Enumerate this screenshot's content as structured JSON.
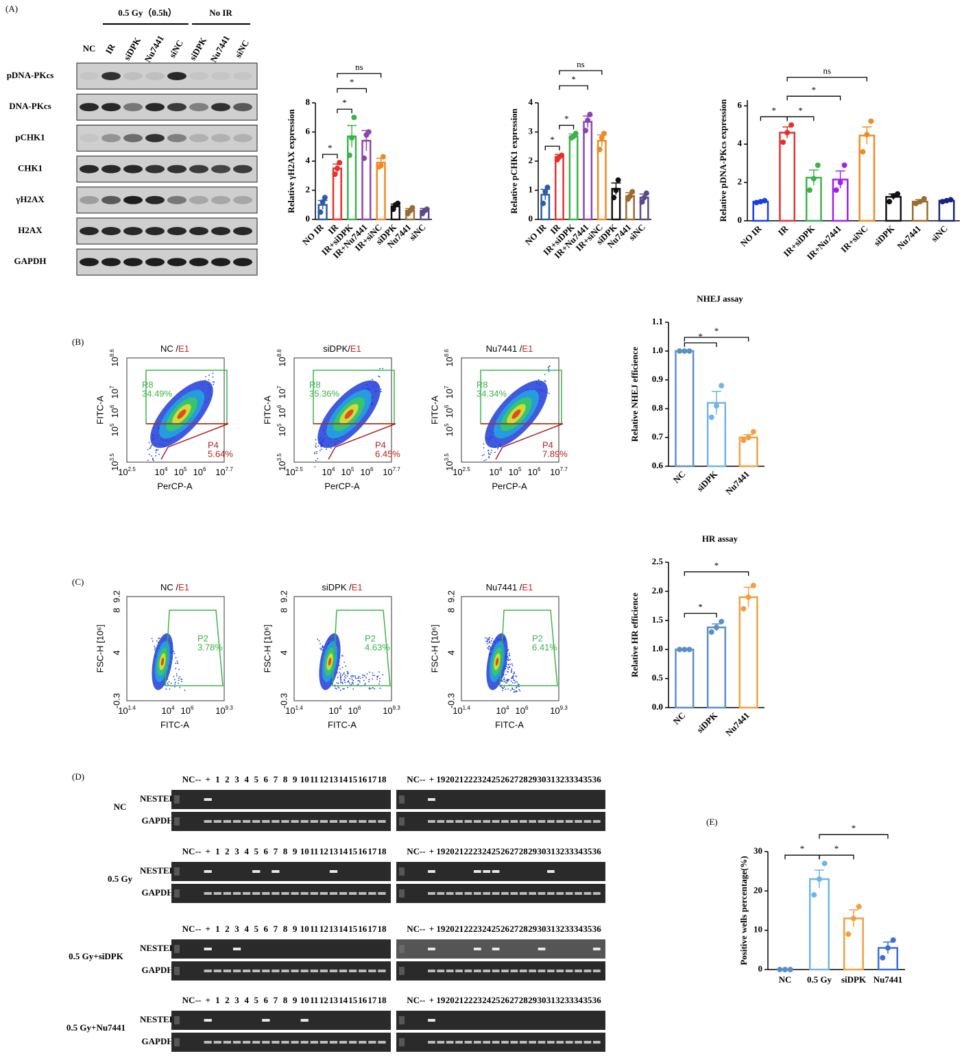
{
  "panel_labels": [
    "(A)",
    "(B)",
    "(C)",
    "(D)",
    "(E)"
  ],
  "blot": {
    "header": [
      "0.5 Gy（0.5h）",
      "No IR"
    ],
    "lanes": [
      "NC",
      "IR",
      "siDPK",
      "Nu7441",
      "siNC",
      "siDPK",
      "Nu7441",
      "siNC"
    ],
    "rows": [
      {
        "name": "pDNA-PKcs",
        "bands": [
          0.05,
          0.8,
          0.08,
          0.08,
          0.85,
          0.05,
          0.05,
          0.05
        ]
      },
      {
        "name": "DNA-PKcs",
        "bands": [
          0.85,
          0.85,
          0.45,
          0.85,
          0.75,
          0.4,
          0.8,
          0.6
        ]
      },
      {
        "name": "pCHK1",
        "bands": [
          0.05,
          0.3,
          0.5,
          0.8,
          0.4,
          0.15,
          0.15,
          0.15
        ]
      },
      {
        "name": "CHK1",
        "bands": [
          0.85,
          0.85,
          0.85,
          0.8,
          0.8,
          0.75,
          0.7,
          0.75
        ]
      },
      {
        "name": "γH2AX",
        "bands": [
          0.25,
          0.6,
          0.9,
          0.85,
          0.45,
          0.2,
          0.2,
          0.2
        ]
      },
      {
        "name": "H2AX",
        "bands": [
          0.85,
          0.85,
          0.85,
          0.85,
          0.85,
          0.85,
          0.85,
          0.85
        ]
      },
      {
        "name": "GAPDH",
        "bands": [
          0.9,
          0.9,
          0.9,
          0.9,
          0.9,
          0.9,
          0.9,
          0.9
        ]
      }
    ]
  },
  "flow_b": {
    "xlabel": "PerCP-A",
    "ylabel": "FITC-A",
    "xticks": [
      {
        "base": "10",
        "exp": "2.5"
      },
      {
        "base": "10",
        "exp": "4"
      },
      {
        "base": "10",
        "exp": "5"
      },
      {
        "base": "10",
        "exp": "6"
      },
      {
        "base": "10",
        "exp": "7.7"
      }
    ],
    "yticks": [
      {
        "base": "10",
        "exp": "3.5"
      },
      {
        "base": "10",
        "exp": "5"
      },
      {
        "base": "10",
        "exp": "6"
      },
      {
        "base": "10",
        "exp": "7"
      },
      {
        "base": "10",
        "exp": "8.6"
      }
    ],
    "plots": [
      {
        "title": "NC /",
        "tag": "E1",
        "gate1": "R8",
        "pct1": "34.49%",
        "gate2": "P4",
        "pct2": "5.64%"
      },
      {
        "title": "siDPK/",
        "tag": "E1",
        "gate1": "R8",
        "pct1": "35.36%",
        "gate2": "P4",
        "pct2": "6.45%"
      },
      {
        "title": "Nu7441 /",
        "tag": "E1",
        "gate1": "R8",
        "pct1": "34.34%",
        "gate2": "P4",
        "pct2": "7.89%"
      }
    ]
  },
  "flow_c": {
    "xlabel": "FITC-A",
    "ylabel": "FSC-H [10⁶]",
    "xticks": [
      {
        "base": "10",
        "exp": "1.4"
      },
      {
        "base": "10",
        "exp": "4"
      },
      {
        "base": "10",
        "exp": "6"
      },
      {
        "base": "10",
        "exp": "9.3"
      }
    ],
    "yticks": [
      "-0.3",
      "4",
      "8",
      "9.2"
    ],
    "plots": [
      {
        "title": "NC /",
        "tag": "E1",
        "gate": "P2",
        "pct": "3.78%"
      },
      {
        "title": "siDPK /",
        "tag": "E1",
        "gate": "P2",
        "pct": "4.63%"
      },
      {
        "title": "Nu7441 /",
        "tag": "E1",
        "gate": "P2",
        "pct": "6.41%"
      }
    ]
  },
  "gel": {
    "rows": [
      "NESTED",
      "GAPDH"
    ],
    "lanes_left": [
      "NC",
      "--",
      "+",
      "1",
      "2",
      "3",
      "4",
      "5",
      "6",
      "7",
      "8",
      "9",
      "10",
      "11",
      "12",
      "13",
      "14",
      "15",
      "16",
      "17",
      "18"
    ],
    "lanes_right": [
      "NC",
      "--",
      "+",
      "19",
      "20",
      "21",
      "22",
      "23",
      "24",
      "25",
      "26",
      "27",
      "28",
      "29",
      "30",
      "31",
      "32",
      "33",
      "34",
      "35",
      "36"
    ],
    "groups": [
      {
        "name": "NC",
        "positive": [
          "+"
        ]
      },
      {
        "name": "0.5 Gy",
        "positive": [
          "+",
          "5",
          "7",
          "13",
          "23",
          "24",
          "25",
          "31"
        ]
      },
      {
        "name": "0.5 Gy+siDPK",
        "positive": [
          "+",
          "3",
          "23",
          "25",
          "30",
          "36"
        ]
      },
      {
        "name": "0.5 Gy+Nu7441",
        "positive": [
          "+",
          "6",
          "10"
        ]
      }
    ]
  },
  "chart_data": [
    {
      "type": "bar",
      "ylabel": "Relative γH2AX expression",
      "categories": [
        "NO IR",
        "IR",
        "IR+siDPK",
        "IR+Nu7441",
        "IR+siNC",
        "siDPK",
        "Nu7441",
        "siNC"
      ],
      "values": [
        1.0,
        3.5,
        5.7,
        5.4,
        3.9,
        0.9,
        0.6,
        0.6
      ],
      "errors": [
        0.3,
        0.3,
        0.75,
        0.7,
        0.3,
        0.15,
        0.15,
        0.15
      ],
      "points": [
        [
          0.5,
          1.2,
          1.5
        ],
        [
          3.1,
          3.5,
          3.9
        ],
        [
          4.4,
          5.6,
          7.0
        ],
        [
          4.2,
          5.8,
          6.0
        ],
        [
          3.6,
          3.7,
          4.3
        ],
        [
          0.7,
          1.0,
          1.1
        ],
        [
          0.4,
          0.6,
          0.8
        ],
        [
          0.4,
          0.6,
          0.7
        ]
      ],
      "colors": [
        "#2a5caa",
        "#e8302a",
        "#3cb34a",
        "#8e44ad",
        "#f08a24",
        "#111111",
        "#9c6b30",
        "#5a4a8a"
      ],
      "ylim": [
        0,
        8
      ],
      "yticks": [
        0,
        2,
        4,
        6,
        8
      ],
      "brackets": [
        {
          "categories": [
            "NO IR",
            "IR"
          ],
          "label": "*"
        },
        {
          "categories": [
            "IR",
            "IR+siDPK"
          ],
          "label": "*"
        },
        {
          "categories": [
            "IR",
            "IR+Nu7441"
          ],
          "label": "*"
        },
        {
          "categories": [
            "IR",
            "IR+siNC"
          ],
          "label": "ns"
        }
      ]
    },
    {
      "type": "bar",
      "ylabel": "Relative pCHK1 expression",
      "categories": [
        "NO IR",
        "IR",
        "IR+siDPK",
        "IR+Nu7441",
        "IR+siNC",
        "siDPK",
        "Nu7441",
        "siNC"
      ],
      "values": [
        0.85,
        2.15,
        2.85,
        3.35,
        2.7,
        1.05,
        0.8,
        0.75
      ],
      "errors": [
        0.18,
        0.08,
        0.08,
        0.2,
        0.2,
        0.2,
        0.12,
        0.12
      ],
      "points": [
        [
          0.55,
          0.95,
          1.1
        ],
        [
          2.05,
          2.15,
          2.2
        ],
        [
          2.8,
          2.85,
          2.95
        ],
        [
          3.05,
          3.4,
          3.6
        ],
        [
          2.4,
          2.8,
          2.95
        ],
        [
          0.75,
          1.0,
          1.35
        ],
        [
          0.7,
          0.8,
          0.95
        ],
        [
          0.6,
          0.75,
          0.9
        ]
      ],
      "colors": [
        "#2a5caa",
        "#e8302a",
        "#3cb34a",
        "#8e44ad",
        "#f08a24",
        "#111111",
        "#9c6b30",
        "#5a4a8a"
      ],
      "ylim": [
        0,
        4
      ],
      "yticks": [
        0,
        1,
        2,
        3,
        4
      ],
      "brackets": [
        {
          "categories": [
            "NO IR",
            "IR"
          ],
          "label": "*"
        },
        {
          "categories": [
            "IR",
            "IR+siDPK"
          ],
          "label": "*"
        },
        {
          "categories": [
            "IR",
            "IR+Nu7441"
          ],
          "label": "*"
        },
        {
          "categories": [
            "IR",
            "IR+siNC"
          ],
          "label": "ns"
        }
      ]
    },
    {
      "type": "bar",
      "ylabel": "Relative pDNA-PKcs expression",
      "categories": [
        "NO IR",
        "IR",
        "IR+siDPK",
        "IR+Nu7441",
        "IR+siNC",
        "siDPK",
        "Nu7441",
        "siNC"
      ],
      "values": [
        1.0,
        4.6,
        2.25,
        2.15,
        4.45,
        1.25,
        1.0,
        1.05
      ],
      "errors": [
        0.05,
        0.3,
        0.4,
        0.45,
        0.45,
        0.15,
        0.1,
        0.03
      ],
      "points": [
        [
          0.95,
          1.0,
          1.05
        ],
        [
          4.1,
          4.6,
          5.0
        ],
        [
          1.6,
          2.2,
          2.9
        ],
        [
          1.6,
          2.0,
          2.9
        ],
        [
          3.6,
          4.5,
          5.2
        ],
        [
          1.0,
          1.3,
          1.4
        ],
        [
          0.9,
          1.0,
          1.15
        ],
        [
          1.0,
          1.05,
          1.1
        ]
      ],
      "colors": [
        "#1a3ee0",
        "#e8302a",
        "#3cb34a",
        "#a020f0",
        "#f08a24",
        "#111111",
        "#9c6b30",
        "#1a237e"
      ],
      "ylim": [
        0,
        6.3
      ],
      "yticks": [
        0,
        2,
        4,
        6
      ],
      "brackets": [
        {
          "categories": [
            "NO IR",
            "IR"
          ],
          "label": "*"
        },
        {
          "categories": [
            "IR",
            "IR+siDPK"
          ],
          "label": "*"
        },
        {
          "categories": [
            "IR",
            "IR+Nu7441"
          ],
          "label": "*"
        },
        {
          "categories": [
            "IR",
            "IR+siNC"
          ],
          "label": "ns"
        }
      ]
    },
    {
      "type": "bar",
      "title": "NHEJ assay",
      "ylabel": "Relative NHEJ efficience",
      "categories": [
        "NC",
        "siDPK",
        "Nu7441"
      ],
      "values": [
        1.0,
        0.82,
        0.7
      ],
      "errors": [
        0,
        0.04,
        0.01
      ],
      "points": [
        [
          1.0,
          1.0,
          1.0
        ],
        [
          0.77,
          0.81,
          0.88
        ],
        [
          0.69,
          0.7,
          0.72
        ]
      ],
      "colors": [
        "#5b8fc7",
        "#6fb6e6",
        "#f0a040"
      ],
      "ylim": [
        0.6,
        1.1
      ],
      "yticks": [
        0.6,
        0.7,
        0.8,
        0.9,
        {
          "value": 1,
          "label": "1.0"
        },
        1.1
      ],
      "brackets": [
        {
          "categories": [
            "NC",
            "siDPK"
          ],
          "label": "*"
        },
        {
          "categories": [
            "NC",
            "Nu7441"
          ],
          "label": "*"
        }
      ]
    },
    {
      "type": "bar",
      "title": "HR assay",
      "ylabel": "Relative HR efficience",
      "categories": [
        "NC",
        "siDPK",
        "Nu7441"
      ],
      "values": [
        1.0,
        1.38,
        1.9
      ],
      "errors": [
        0,
        0.06,
        0.17
      ],
      "points": [
        [
          1.0,
          1.0,
          1.0
        ],
        [
          1.3,
          1.38,
          1.48
        ],
        [
          1.7,
          1.9,
          2.1
        ]
      ],
      "colors": [
        "#5b8fc7",
        "#5b8fc7",
        "#f0a040"
      ],
      "ylim": [
        0,
        2.5
      ],
      "yticks": [
        {
          "value": 0,
          "label": "0.0"
        },
        0.5,
        {
          "value": 1,
          "label": "1.0"
        },
        1.5,
        {
          "value": 2,
          "label": "2.0"
        },
        2.5
      ],
      "brackets": [
        {
          "categories": [
            "NC",
            "siDPK"
          ],
          "label": "*"
        },
        {
          "categories": [
            "NC",
            "Nu7441"
          ],
          "label": "*"
        }
      ]
    },
    {
      "type": "bar",
      "ylabel": "Positive wells percentage(%)",
      "categories": [
        "NC",
        "0.5 Gy",
        "siDPK",
        "Nu7441"
      ],
      "values": [
        0,
        23,
        13,
        5.5
      ],
      "errors": [
        0,
        2.3,
        2.2,
        1.5
      ],
      "points": [
        [
          0,
          0,
          0
        ],
        [
          19,
          23,
          27
        ],
        [
          9,
          13,
          16
        ],
        [
          3,
          5.5,
          7.5
        ]
      ],
      "colors": [
        "#5b8fc7",
        "#6fb6e6",
        "#f0a040",
        "#3a6fd8"
      ],
      "ylim": [
        0,
        30
      ],
      "yticks": [
        0,
        10,
        20,
        30
      ],
      "brackets": [
        {
          "categories": [
            "NC",
            "0.5 Gy"
          ],
          "label": "*"
        },
        {
          "categories": [
            "0.5 Gy",
            "siDPK"
          ],
          "label": "*"
        },
        {
          "categories": [
            "0.5 Gy",
            "Nu7441"
          ],
          "label": "*"
        }
      ]
    }
  ]
}
